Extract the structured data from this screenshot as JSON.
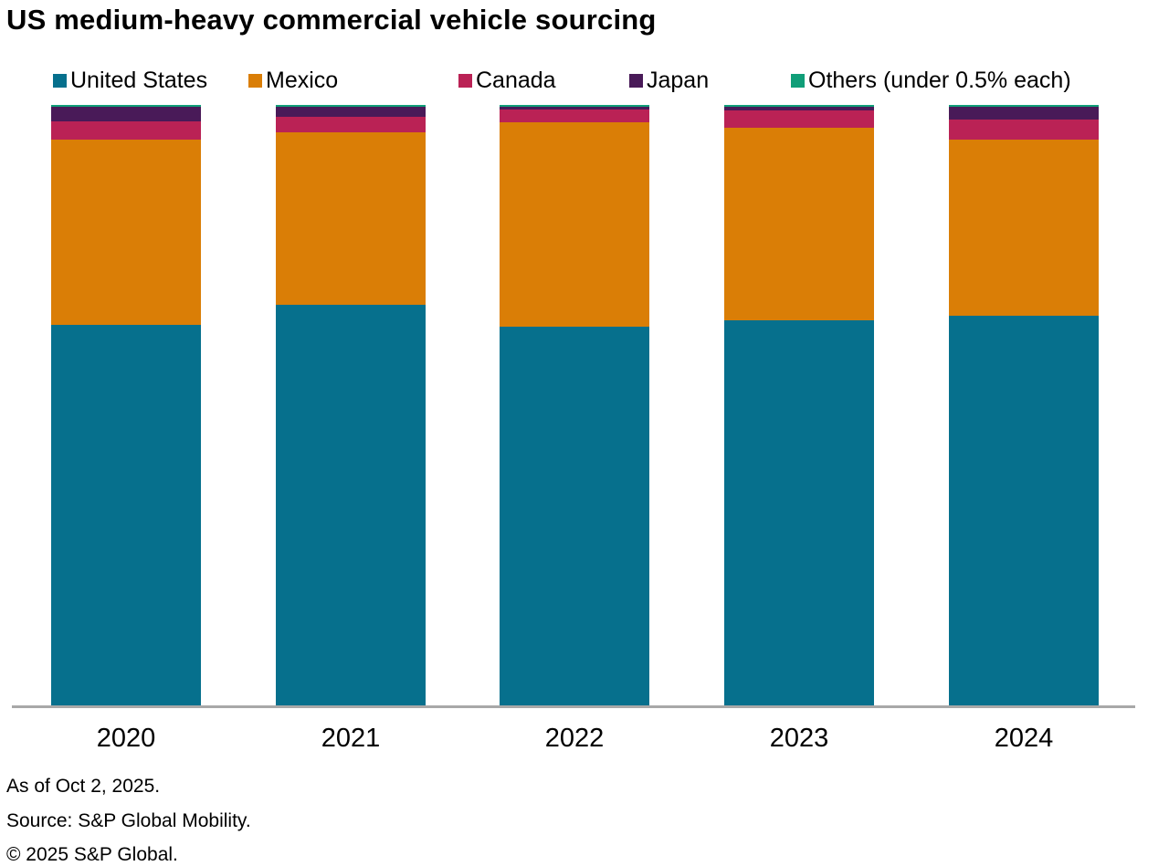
{
  "title": "US medium-heavy commercial vehicle sourcing",
  "chart_data": {
    "type": "bar",
    "subtype": "stacked-percent",
    "title": "US medium-heavy commercial vehicle sourcing",
    "categories": [
      "2020",
      "2021",
      "2022",
      "2023",
      "2024"
    ],
    "series": [
      {
        "name": "United States",
        "color": "#06708d",
        "values": [
          63.4,
          66.7,
          63.1,
          64.1,
          64.9
        ]
      },
      {
        "name": "Mexico",
        "color": "#da7e06",
        "values": [
          30.8,
          28.7,
          34.0,
          32.1,
          29.4
        ]
      },
      {
        "name": "Canada",
        "color": "#ba2255",
        "values": [
          3.0,
          2.7,
          2.1,
          2.9,
          3.3
        ]
      },
      {
        "name": "Japan",
        "color": "#491a58",
        "values": [
          2.5,
          1.6,
          0.5,
          0.6,
          2.1
        ]
      },
      {
        "name": "Others (under 0.5% each)",
        "color": "#109e78",
        "values": [
          0.3,
          0.3,
          0.3,
          0.3,
          0.3
        ]
      }
    ],
    "xlabel": "",
    "ylabel": "",
    "ylim": [
      0,
      100
    ],
    "unit": "percent share",
    "grid": false,
    "legend_position": "top",
    "axis_line_color": "#a8a8a8"
  },
  "footnotes": [
    "As of Oct 2, 2025.",
    "Source: S&P Global Mobility.",
    "© 2025 S&P Global."
  ]
}
